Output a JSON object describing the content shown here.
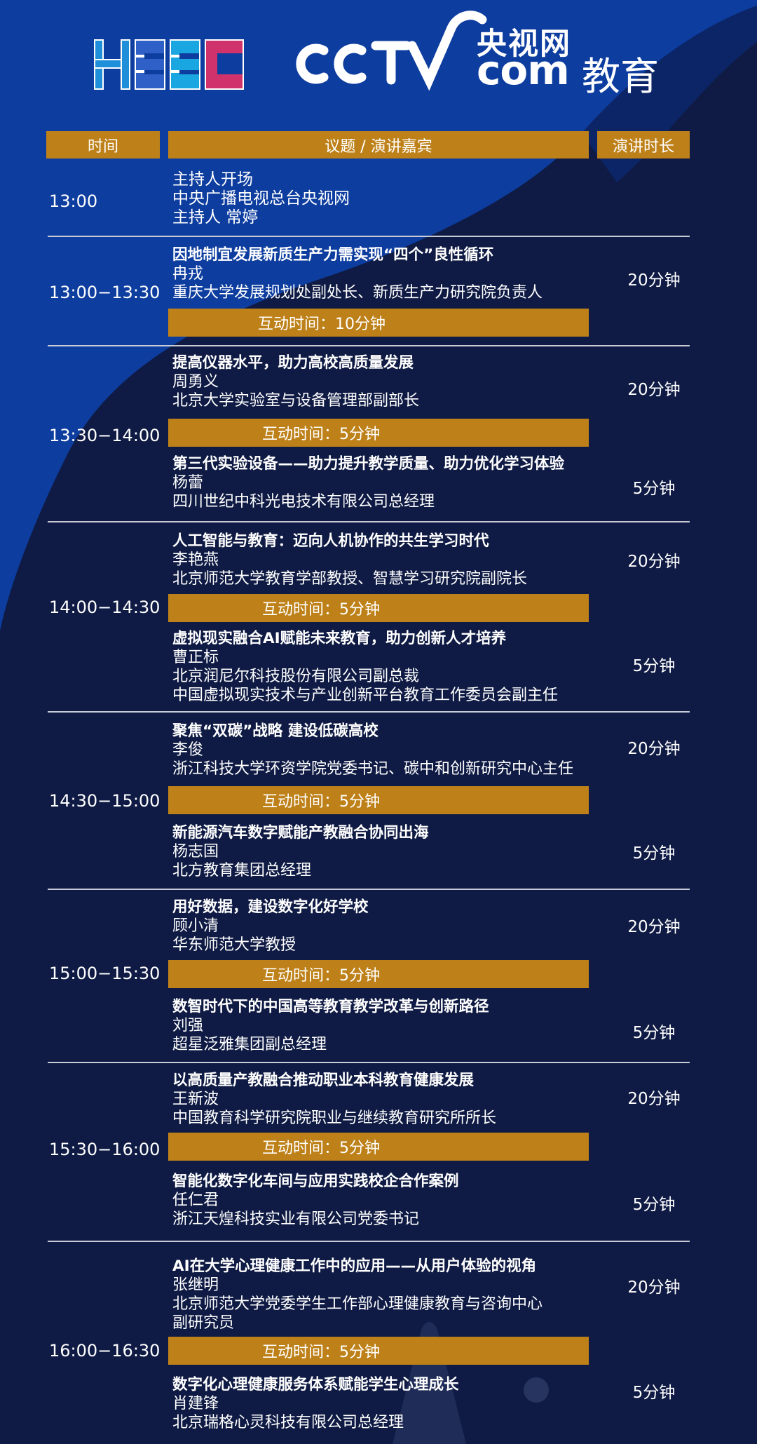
{
  "logos": {
    "heec": "HEEC",
    "cctv_cn": "央视网",
    "cctv_com": "com",
    "cctv_edu": "教育"
  },
  "colors": {
    "gold": "#be8119",
    "navy": "#0f1b44",
    "blue": "#0d3d9f"
  },
  "header": {
    "time": "时间",
    "topic": "议题 / 演讲嘉宾",
    "duration": "演讲时长"
  },
  "opening": {
    "time": "13:00",
    "lines": [
      "主持人开场",
      "中央广播电视总台央视网",
      "主持人  常婷"
    ]
  },
  "sessions": [
    {
      "time": "13:00−13:30",
      "talks": [
        {
          "title": "因地制宜发展新质生产力需实现“四个”良性循环",
          "lines": [
            "冉戎",
            "重庆大学发展规划处副处长、新质生产力研究院负责人"
          ],
          "duration": "20分钟"
        }
      ],
      "interaction": "互动时间：10分钟"
    },
    {
      "time": "13:30−14:00",
      "talks": [
        {
          "title": "提高仪器水平，助力高校高质量发展",
          "lines": [
            "周勇义",
            "北京大学实验室与设备管理部副部长"
          ],
          "duration": "20分钟"
        },
        {
          "title": "第三代实验设备——助力提升教学质量、助力优化学习体验",
          "lines": [
            "杨蕾",
            "四川世纪中科光电技术有限公司总经理"
          ],
          "duration": "5分钟"
        }
      ],
      "interaction": "互动时间：5分钟"
    },
    {
      "time": "14:00−14:30",
      "talks": [
        {
          "title": "人工智能与教育：迈向人机协作的共生学习时代",
          "lines": [
            "李艳燕",
            "北京师范大学教育学部教授、智慧学习研究院副院长"
          ],
          "duration": "20分钟"
        },
        {
          "title": "虚拟现实融合AI赋能未来教育，助力创新人才培养",
          "lines": [
            "曹正标",
            "北京润尼尔科技股份有限公司副总裁",
            "中国虚拟现实技术与产业创新平台教育工作委员会副主任"
          ],
          "duration": "5分钟"
        }
      ],
      "interaction": "互动时间：5分钟"
    },
    {
      "time": "14:30−15:00",
      "talks": [
        {
          "title": "聚焦“双碳”战略 建设低碳高校",
          "lines": [
            "李俊",
            "浙江科技大学环资学院党委书记、碳中和创新研究中心主任"
          ],
          "duration": "20分钟"
        },
        {
          "title": "新能源汽车数字赋能产教融合协同出海",
          "lines": [
            "杨志国",
            "北方教育集团总经理"
          ],
          "duration": "5分钟"
        }
      ],
      "interaction": "互动时间：5分钟"
    },
    {
      "time": "15:00−15:30",
      "talks": [
        {
          "title": "用好数据，建设数字化好学校",
          "lines": [
            "顾小清",
            "华东师范大学教授"
          ],
          "duration": "20分钟"
        },
        {
          "title": "数智时代下的中国高等教育教学改革与创新路径",
          "lines": [
            "刘强",
            "超星泛雅集团副总经理"
          ],
          "duration": "5分钟"
        }
      ],
      "interaction": "互动时间：5分钟"
    },
    {
      "time": "15:30−16:00",
      "talks": [
        {
          "title": "以高质量产教融合推动职业本科教育健康发展",
          "lines": [
            "王新波",
            "中国教育科学研究院职业与继续教育研究所所长"
          ],
          "duration": "20分钟"
        },
        {
          "title": "智能化数字化车间与应用实践校企合作案例",
          "lines": [
            "任仁君",
            "浙江天煌科技实业有限公司党委书记"
          ],
          "duration": "5分钟"
        }
      ],
      "interaction": "互动时间：5分钟"
    },
    {
      "time": "16:00−16:30",
      "talks": [
        {
          "title": "AI在大学心理健康工作中的应用——从用户体验的视角",
          "lines": [
            "张继明",
            "北京师范大学党委学生工作部心理健康教育与咨询中心",
            "副研究员"
          ],
          "duration": "20分钟"
        },
        {
          "title": "数字化心理健康服务体系赋能学生心理成长",
          "lines": [
            "肖建锋",
            "北京瑞格心灵科技有限公司总经理"
          ],
          "duration": "5分钟"
        }
      ],
      "interaction": "互动时间：5分钟"
    }
  ]
}
